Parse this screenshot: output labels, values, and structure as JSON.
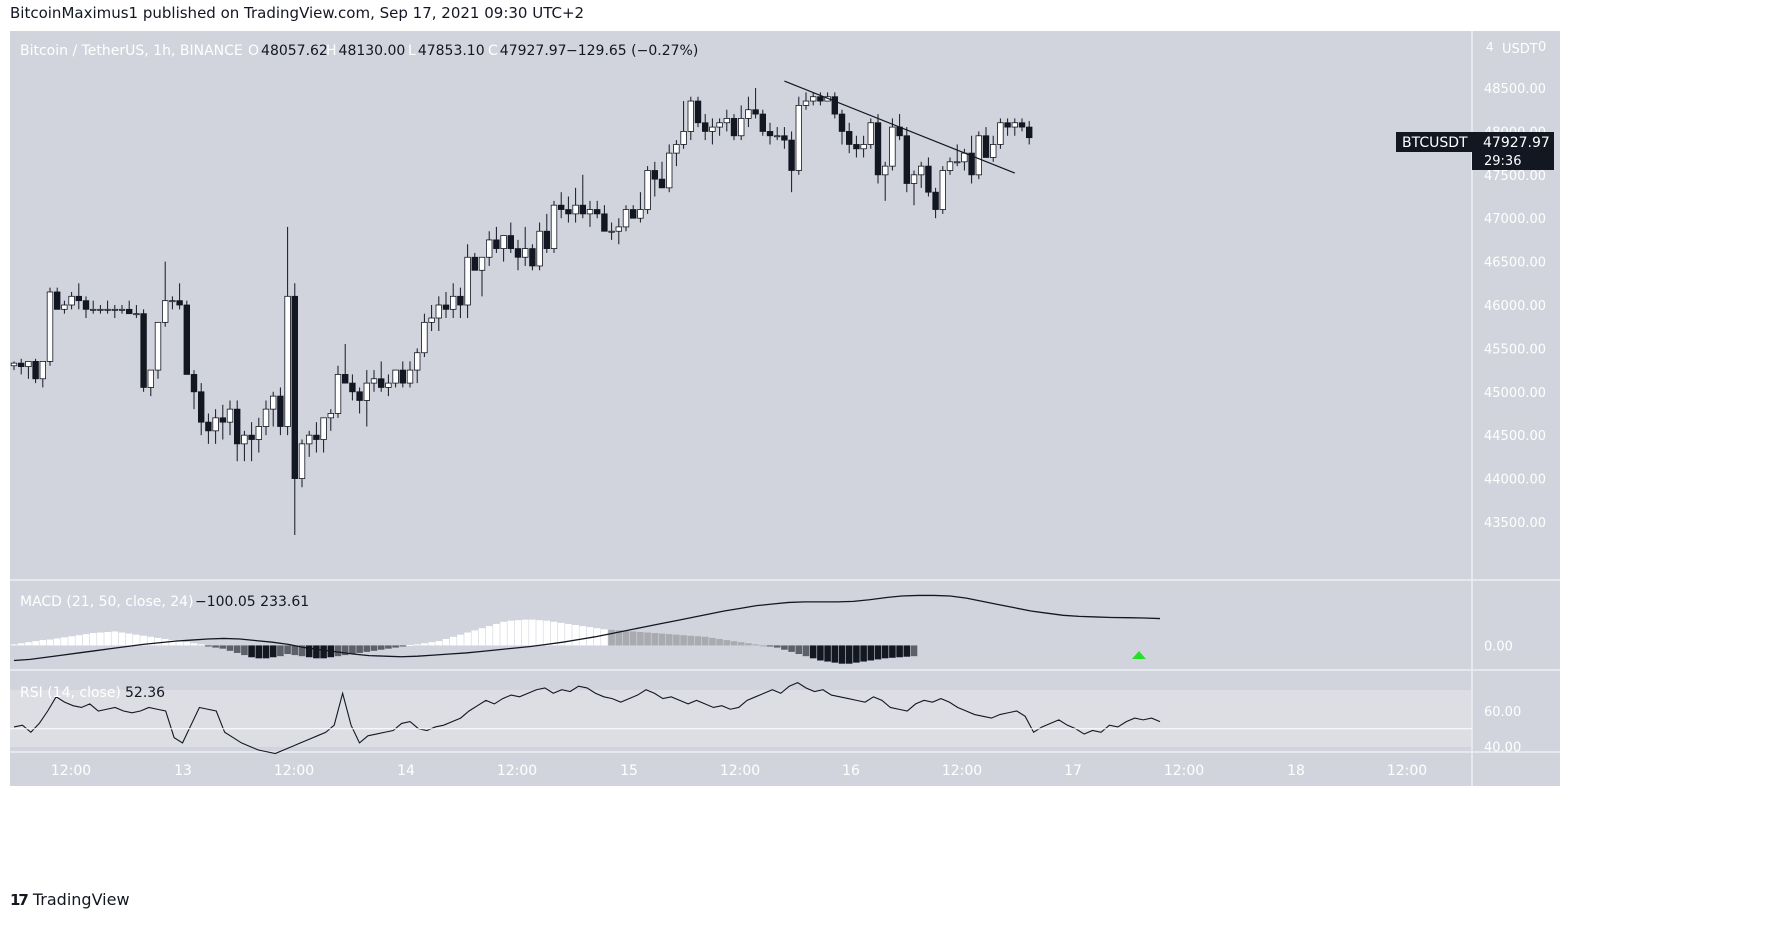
{
  "header": {
    "text": "BitcoinMaximus1 published on TradingView.com, Sep 17, 2021 09:30 UTC+2"
  },
  "legend": {
    "symbol": "Bitcoin / TetherUS, 1h, BINANCE",
    "o_label": "O",
    "o": "48057.62",
    "h_label": "H",
    "h": "48130.00",
    "l_label": "L",
    "l": "47853.10",
    "c_label": "C",
    "c": "47927.97",
    "change": "−129.65 (−0.27%)"
  },
  "price_tag": {
    "symbol": "BTCUSDT",
    "price": "47927.97",
    "countdown": "29:36"
  },
  "currency": "USDT",
  "currency_suffix": "0",
  "currency_prefix": "4",
  "macd_label": "MACD (21, 50, close, 24)",
  "macd_values": "−100.05  233.61",
  "rsi_label": "RSI (14, close)",
  "rsi_value": "52.36",
  "footer": {
    "brand": "TradingView"
  },
  "colors": {
    "background": "#d1d4dc",
    "up": "#ffffff",
    "down": "#131722",
    "signal_marker": "#26e026"
  },
  "chart_data": [
    {
      "type": "candlestick",
      "title": "Bitcoin / TetherUS, 1h, BINANCE",
      "y_ticks": [
        43500,
        44000,
        44500,
        45000,
        45500,
        46000,
        46500,
        47000,
        47500,
        48000,
        48500
      ],
      "y_tick_labels": [
        "43500.00",
        "44000.00",
        "44500.00",
        "45000.00",
        "45500.00",
        "46000.00",
        "46500.00",
        "47000.00",
        "47500.00",
        "48000.00",
        "48500.00"
      ],
      "x_tick_labels": [
        "12:00",
        "13",
        "12:00",
        "14",
        "12:00",
        "15",
        "12:00",
        "16",
        "12:00",
        "17",
        "12:00",
        "18",
        "12:00"
      ],
      "ylim": [
        43200,
        48800
      ],
      "candles": [
        [
          45300,
          45350,
          45250,
          45330
        ],
        [
          45330,
          45380,
          45200,
          45290
        ],
        [
          45290,
          45340,
          45150,
          45350
        ],
        [
          45350,
          45380,
          45100,
          45150
        ],
        [
          45150,
          45350,
          45050,
          45350
        ],
        [
          45350,
          46200,
          45300,
          46150
        ],
        [
          46150,
          46200,
          45950,
          45950
        ],
        [
          45950,
          46050,
          45900,
          46000
        ],
        [
          46000,
          46150,
          45950,
          46100
        ],
        [
          46100,
          46250,
          45950,
          46050
        ],
        [
          46050,
          46100,
          45850,
          45950
        ],
        [
          45950,
          46050,
          45900,
          45950
        ],
        [
          45950,
          46000,
          45900,
          45950
        ],
        [
          45950,
          46050,
          45900,
          45950
        ],
        [
          45950,
          46000,
          45850,
          45950
        ],
        [
          45950,
          46000,
          45900,
          45950
        ],
        [
          45950,
          46050,
          45900,
          45900
        ],
        [
          45900,
          46000,
          45850,
          45900
        ],
        [
          45900,
          45950,
          45000,
          45050
        ],
        [
          45050,
          45250,
          44950,
          45250
        ],
        [
          45250,
          45800,
          45150,
          45800
        ],
        [
          45800,
          46500,
          45750,
          46050
        ],
        [
          46050,
          46100,
          45950,
          46050
        ],
        [
          46050,
          46250,
          45950,
          46000
        ],
        [
          46000,
          46050,
          45200,
          45200
        ],
        [
          45200,
          45250,
          44800,
          45000
        ],
        [
          45000,
          45100,
          44500,
          44650
        ],
        [
          44650,
          44750,
          44400,
          44550
        ],
        [
          44550,
          44800,
          44400,
          44700
        ],
        [
          44700,
          44850,
          44450,
          44650
        ],
        [
          44650,
          44900,
          44500,
          44800
        ],
        [
          44800,
          44900,
          44200,
          44400
        ],
        [
          44400,
          44550,
          44200,
          44500
        ],
        [
          44500,
          44650,
          44200,
          44450
        ],
        [
          44450,
          44700,
          44300,
          44600
        ],
        [
          44600,
          44900,
          44500,
          44800
        ],
        [
          44800,
          45000,
          44600,
          44950
        ],
        [
          44950,
          45050,
          44500,
          44600
        ],
        [
          44600,
          46900,
          44500,
          46100
        ],
        [
          46100,
          46250,
          43350,
          44000
        ],
        [
          44000,
          44450,
          43900,
          44400
        ],
        [
          44400,
          44550,
          44250,
          44500
        ],
        [
          44500,
          44650,
          44300,
          44450
        ],
        [
          44450,
          44700,
          44300,
          44700
        ],
        [
          44700,
          44800,
          44550,
          44750
        ],
        [
          44750,
          45300,
          44700,
          45200
        ],
        [
          45200,
          45550,
          45100,
          45100
        ],
        [
          45100,
          45200,
          44900,
          45000
        ],
        [
          45000,
          45050,
          44750,
          44900
        ],
        [
          44900,
          45250,
          44600,
          45100
        ],
        [
          45100,
          45250,
          45000,
          45150
        ],
        [
          45150,
          45350,
          45000,
          45050
        ],
        [
          45050,
          45200,
          44950,
          45100
        ],
        [
          45100,
          45250,
          45050,
          45250
        ],
        [
          45250,
          45350,
          45050,
          45100
        ],
        [
          45100,
          45350,
          45050,
          45250
        ],
        [
          45250,
          45500,
          45100,
          45450
        ],
        [
          45450,
          45900,
          45400,
          45800
        ],
        [
          45800,
          46000,
          45700,
          45850
        ],
        [
          45850,
          46100,
          45700,
          46000
        ],
        [
          46000,
          46150,
          45850,
          45950
        ],
        [
          45950,
          46250,
          45850,
          46100
        ],
        [
          46100,
          46200,
          45850,
          46000
        ],
        [
          46000,
          46700,
          45850,
          46550
        ],
        [
          46550,
          46600,
          46400,
          46400
        ],
        [
          46400,
          46550,
          46100,
          46550
        ],
        [
          46550,
          46850,
          46450,
          46750
        ],
        [
          46750,
          46900,
          46600,
          46650
        ],
        [
          46650,
          46800,
          46500,
          46800
        ],
        [
          46800,
          46950,
          46600,
          46650
        ],
        [
          46650,
          46750,
          46400,
          46550
        ],
        [
          46550,
          46900,
          46450,
          46650
        ],
        [
          46650,
          46700,
          46400,
          46450
        ],
        [
          46450,
          46950,
          46400,
          46850
        ],
        [
          46850,
          47050,
          46600,
          46650
        ],
        [
          46650,
          47200,
          46600,
          47150
        ],
        [
          47150,
          47300,
          47000,
          47100
        ],
        [
          47100,
          47250,
          46950,
          47050
        ],
        [
          47050,
          47350,
          46950,
          47150
        ],
        [
          47150,
          47500,
          47000,
          47050
        ],
        [
          47050,
          47200,
          46900,
          47100
        ],
        [
          47100,
          47200,
          47000,
          47050
        ],
        [
          47050,
          47150,
          46850,
          46850
        ],
        [
          46850,
          46950,
          46750,
          46850
        ],
        [
          46850,
          47000,
          46700,
          46900
        ],
        [
          46900,
          47150,
          46850,
          47100
        ],
        [
          47100,
          47150,
          47000,
          47000
        ],
        [
          47000,
          47300,
          46950,
          47100
        ],
        [
          47100,
          47600,
          47050,
          47550
        ],
        [
          47550,
          47650,
          47250,
          47450
        ],
        [
          47450,
          47650,
          47350,
          47350
        ],
        [
          47350,
          47850,
          47300,
          47750
        ],
        [
          47750,
          47900,
          47600,
          47850
        ],
        [
          47850,
          48350,
          47800,
          48000
        ],
        [
          48000,
          48400,
          47900,
          48350
        ],
        [
          48350,
          48400,
          48050,
          48100
        ],
        [
          48100,
          48200,
          47900,
          48000
        ],
        [
          48000,
          48150,
          47850,
          48050
        ],
        [
          48050,
          48150,
          47950,
          48100
        ],
        [
          48100,
          48250,
          48000,
          48150
        ],
        [
          48150,
          48200,
          47900,
          47950
        ],
        [
          47950,
          48300,
          47900,
          48150
        ],
        [
          48150,
          48400,
          48050,
          48250
        ],
        [
          48250,
          48500,
          48150,
          48200
        ],
        [
          48200,
          48250,
          47950,
          48000
        ],
        [
          48000,
          48100,
          47850,
          47950
        ],
        [
          47950,
          48050,
          47900,
          47950
        ],
        [
          47950,
          48050,
          47800,
          47900
        ],
        [
          47900,
          48000,
          47300,
          47550
        ],
        [
          47550,
          48400,
          47500,
          48300
        ],
        [
          48300,
          48450,
          48250,
          48350
        ],
        [
          48350,
          48450,
          48300,
          48400
        ],
        [
          48400,
          48450,
          48300,
          48350
        ],
        [
          48350,
          48450,
          48350,
          48400
        ],
        [
          48400,
          48450,
          48150,
          48200
        ],
        [
          48200,
          48250,
          47850,
          48000
        ],
        [
          48000,
          48100,
          47750,
          47850
        ],
        [
          47850,
          47950,
          47700,
          47800
        ],
        [
          47800,
          47950,
          47700,
          47850
        ],
        [
          47850,
          48150,
          47800,
          48100
        ],
        [
          48100,
          48200,
          47400,
          47500
        ],
        [
          47500,
          47650,
          47200,
          47600
        ],
        [
          47600,
          48150,
          47550,
          48050
        ],
        [
          48050,
          48200,
          47900,
          47950
        ],
        [
          47950,
          48050,
          47300,
          47400
        ],
        [
          47400,
          47550,
          47150,
          47500
        ],
        [
          47500,
          47650,
          47350,
          47600
        ],
        [
          47600,
          47700,
          47250,
          47300
        ],
        [
          47300,
          47350,
          47000,
          47100
        ],
        [
          47100,
          47600,
          47050,
          47550
        ],
        [
          47550,
          47700,
          47500,
          47650
        ],
        [
          47650,
          47850,
          47600,
          47650
        ],
        [
          47650,
          47800,
          47550,
          47750
        ],
        [
          47750,
          47950,
          47400,
          47500
        ],
        [
          47500,
          48000,
          47450,
          47950
        ],
        [
          47950,
          48050,
          47700,
          47700
        ],
        [
          47700,
          47950,
          47650,
          47850
        ],
        [
          47850,
          48150,
          47800,
          48100
        ],
        [
          48100,
          48150,
          47950,
          48050
        ],
        [
          48050,
          48150,
          47950,
          48100
        ],
        [
          48100,
          48150,
          48000,
          48050
        ],
        [
          48050,
          48120,
          47850,
          47928
        ]
      ],
      "trendline": [
        {
          "i": 107,
          "price": 48580
        },
        {
          "i": 139,
          "price": 47520
        }
      ]
    },
    {
      "type": "bar",
      "title": "MACD (21, 50, close, 24)",
      "y_ticks": [
        0
      ],
      "y_tick_labels": [
        "0.00"
      ],
      "ylim": [
        -210,
        590
      ],
      "histogram": [
        10,
        20,
        30,
        40,
        50,
        55,
        65,
        75,
        85,
        95,
        105,
        115,
        120,
        125,
        130,
        120,
        110,
        100,
        90,
        80,
        70,
        60,
        50,
        40,
        30,
        20,
        10,
        -10,
        -20,
        -30,
        -50,
        -70,
        -90,
        -110,
        -120,
        -120,
        -110,
        -100,
        -80,
        -90,
        -100,
        -110,
        -120,
        -120,
        -110,
        -100,
        -90,
        -80,
        -70,
        -60,
        -50,
        -40,
        -30,
        -20,
        -10,
        5,
        10,
        20,
        30,
        40,
        60,
        80,
        100,
        120,
        140,
        160,
        180,
        200,
        220,
        230,
        235,
        240,
        240,
        235,
        230,
        220,
        210,
        200,
        190,
        180,
        170,
        160,
        150,
        145,
        140,
        135,
        130,
        125,
        120,
        115,
        110,
        105,
        100,
        95,
        90,
        85,
        80,
        70,
        60,
        50,
        40,
        30,
        20,
        10,
        0,
        -10,
        -20,
        -40,
        -60,
        -80,
        -100,
        -120,
        -140,
        -150,
        -160,
        -170,
        -170,
        -160,
        -150,
        -140,
        -130,
        -120,
        -115,
        -110,
        -105,
        -100
      ],
      "macd_line": [
        -140,
        -130,
        -110,
        -90,
        -70,
        -50,
        -30,
        -10,
        10,
        25,
        40,
        50,
        60,
        65,
        60,
        45,
        30,
        10,
        -20,
        -40,
        -60,
        -80,
        -95,
        -100,
        -105,
        -100,
        -90,
        -80,
        -70,
        -55,
        -40,
        -25,
        -10,
        10,
        30,
        55,
        80,
        110,
        140,
        170,
        200,
        230,
        260,
        290,
        320,
        345,
        370,
        385,
        400,
        405,
        405,
        405,
        410,
        425,
        445,
        460,
        465,
        465,
        460,
        440,
        410,
        380,
        350,
        320,
        300,
        280,
        270,
        265,
        260,
        258,
        255,
        250
      ]
    },
    {
      "type": "line",
      "title": "RSI (14, close)",
      "y_ticks": [
        40,
        60
      ],
      "y_tick_labels": [
        "40.00",
        "60.00"
      ],
      "ylim": [
        38,
        82
      ],
      "band": [
        40,
        70
      ],
      "values": [
        51,
        52,
        48,
        53,
        60,
        68,
        65,
        63,
        62,
        64,
        60,
        61,
        62,
        60,
        59,
        60,
        62,
        61,
        60,
        45,
        42,
        52,
        62,
        61,
        60,
        48,
        45,
        42,
        40,
        38,
        37,
        36,
        38,
        40,
        42,
        44,
        46,
        48,
        52,
        70,
        52,
        42,
        46,
        47,
        48,
        49,
        53,
        54,
        50,
        49,
        51,
        52,
        54,
        56,
        60,
        63,
        66,
        64,
        67,
        69,
        68,
        70,
        72,
        73,
        70,
        72,
        71,
        74,
        73,
        70,
        68,
        67,
        65,
        67,
        69,
        72,
        70,
        67,
        68,
        66,
        64,
        66,
        64,
        62,
        63,
        61,
        62,
        66,
        68,
        70,
        72,
        70,
        74,
        76,
        73,
        71,
        72,
        69,
        68,
        67,
        66,
        65,
        68,
        66,
        62,
        61,
        60,
        64,
        66,
        65,
        67,
        65,
        62,
        60,
        58,
        57,
        56,
        58,
        59,
        60,
        57,
        48,
        51,
        53,
        55,
        52,
        50,
        47,
        49,
        48,
        52,
        51,
        54,
        56,
        55,
        56,
        54
      ]
    }
  ]
}
